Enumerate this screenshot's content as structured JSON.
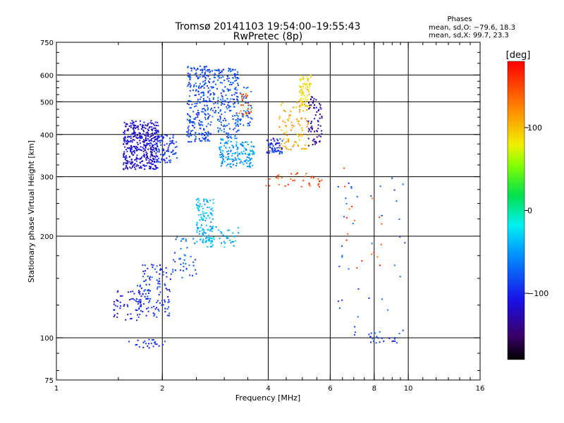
{
  "chart_data": {
    "type": "scatter",
    "title": "Tromsø 20141103 19:54:00–19:55:43",
    "subtitle": "RwPretec (8p)",
    "xlabel": "Frequency [MHz]",
    "ylabel": "Stationary phase Virtual Height [km]",
    "x_scale": "log",
    "y_scale": "log",
    "xlim": [
      1,
      16
    ],
    "ylim": [
      75,
      750
    ],
    "x_ticks": [
      1,
      2,
      4,
      6,
      8,
      10,
      16
    ],
    "y_ticks": [
      75,
      100,
      200,
      300,
      400,
      500,
      600,
      750
    ],
    "x_gridlines": [
      2,
      4,
      6,
      8,
      10
    ],
    "y_gridlines": [
      100,
      200,
      300,
      400,
      500,
      600
    ],
    "grid": true,
    "legend": {
      "heading": "Phases",
      "lines": [
        "mean, sd,O: −79.6, 18.3",
        "mean, sd,X:  99.7, 23.3"
      ],
      "placement": "top-right"
    },
    "colorbar": {
      "label": "[deg]",
      "range": [
        -180,
        180
      ],
      "ticks": [
        100,
        0,
        -100
      ]
    },
    "clusters": [
      {
        "x": [
          1.55,
          1.95
        ],
        "y": [
          315,
          440
        ],
        "phase": -115,
        "n": 420
      },
      {
        "x": [
          1.9,
          2.2
        ],
        "y": [
          330,
          400
        ],
        "phase": -95,
        "n": 90
      },
      {
        "x": [
          2.35,
          2.75
        ],
        "y": [
          380,
          640
        ],
        "phase": -85,
        "n": 260
      },
      {
        "x": [
          2.75,
          3.3
        ],
        "y": [
          390,
          630
        ],
        "phase": -80,
        "n": 200
      },
      {
        "x": [
          3.2,
          3.6
        ],
        "y": [
          420,
          560
        ],
        "phase": -75,
        "n": 60
      },
      {
        "x": [
          3.3,
          3.6
        ],
        "y": [
          450,
          530
        ],
        "phase": 140,
        "n": 25
      },
      {
        "x": [
          2.9,
          3.3
        ],
        "y": [
          320,
          390
        ],
        "phase": -55,
        "n": 90
      },
      {
        "x": [
          3.3,
          3.65
        ],
        "y": [
          320,
          380
        ],
        "phase": -50,
        "n": 70
      },
      {
        "x": [
          3.95,
          4.4
        ],
        "y": [
          350,
          390
        ],
        "phase": -95,
        "n": 60
      },
      {
        "x": [
          4.3,
          5.2
        ],
        "y": [
          360,
          500
        ],
        "phase": 110,
        "n": 90
      },
      {
        "x": [
          4.9,
          5.3
        ],
        "y": [
          480,
          600
        ],
        "phase": 90,
        "n": 70
      },
      {
        "x": [
          5.2,
          5.7
        ],
        "y": [
          370,
          520
        ],
        "phase": -135,
        "n": 70
      },
      {
        "x": [
          3.9,
          5.7
        ],
        "y": [
          280,
          310
        ],
        "phase": 150,
        "n": 35
      },
      {
        "x": [
          2.5,
          2.8
        ],
        "y": [
          190,
          260
        ],
        "phase": -40,
        "n": 110
      },
      {
        "x": [
          2.6,
          3.3
        ],
        "y": [
          185,
          215
        ],
        "phase": -45,
        "n": 50
      },
      {
        "x": [
          1.45,
          1.75
        ],
        "y": [
          112,
          140
        ],
        "phase": -110,
        "n": 50
      },
      {
        "x": [
          1.7,
          2.1
        ],
        "y": [
          115,
          145
        ],
        "phase": -95,
        "n": 90
      },
      {
        "x": [
          1.75,
          2.15
        ],
        "y": [
          145,
          165
        ],
        "phase": -90,
        "n": 40
      },
      {
        "x": [
          2.15,
          2.5
        ],
        "y": [
          150,
          200
        ],
        "phase": -80,
        "n": 40
      },
      {
        "x": [
          1.6,
          2.05
        ],
        "y": [
          93,
          99
        ],
        "phase": -100,
        "n": 25
      },
      {
        "x": [
          7.7,
          9.3
        ],
        "y": [
          96,
          101
        ],
        "phase": -95,
        "n": 18
      },
      {
        "x": [
          6.3,
          9.9
        ],
        "y": [
          100,
          300
        ],
        "phase": -80,
        "n": 45
      },
      {
        "x": [
          6.3,
          8.5
        ],
        "y": [
          160,
          320
        ],
        "phase": 150,
        "n": 18
      }
    ]
  }
}
